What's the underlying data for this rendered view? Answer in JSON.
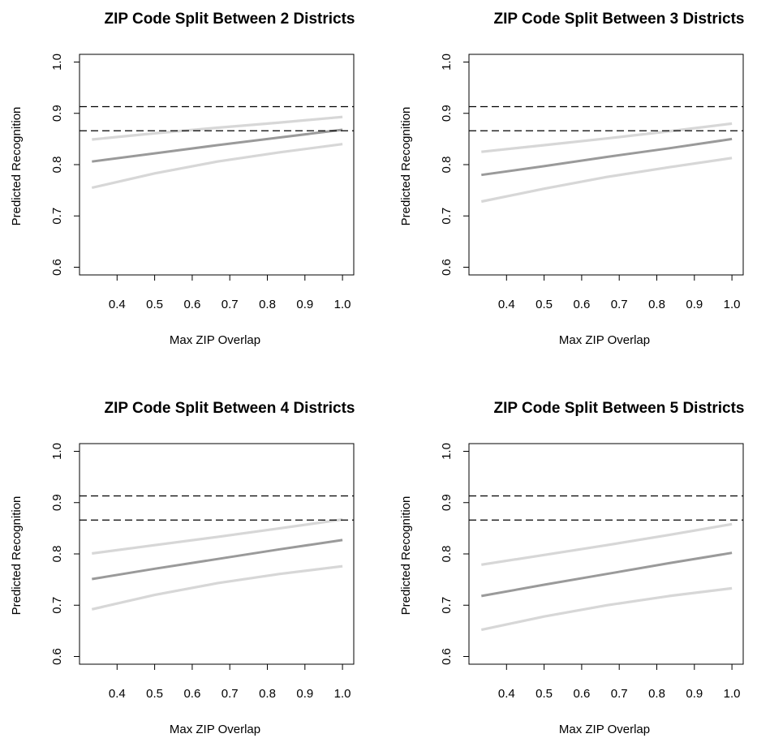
{
  "chart_data": [
    {
      "type": "line",
      "title": "ZIP Code Split Between 2 Districts",
      "xlabel": "Max ZIP Overlap",
      "ylabel": "Predicted Recognition",
      "xlim": [
        0.3,
        1.03
      ],
      "ylim": [
        0.585,
        1.015
      ],
      "xticks": [
        0.4,
        0.5,
        0.6,
        0.7,
        0.8,
        0.9,
        1.0
      ],
      "xtick_labels": [
        "0.4",
        "0.5",
        "0.6",
        "0.7",
        "0.8",
        "0.9",
        "1.0"
      ],
      "yticks": [
        0.6,
        0.7,
        0.8,
        0.9,
        1.0
      ],
      "ytick_labels": [
        "0.6",
        "0.7",
        "0.8",
        "0.9",
        "1.0"
      ],
      "reference_lines": [
        0.913,
        0.866
      ],
      "x": [
        0.333,
        0.5,
        0.667,
        0.833,
        1.0
      ],
      "series": [
        {
          "role": "upper",
          "color": "#d7d7d7",
          "values": [
            0.849,
            0.861,
            0.872,
            0.882,
            0.893
          ]
        },
        {
          "role": "estimate",
          "color": "#9a9a9a",
          "values": [
            0.806,
            0.822,
            0.838,
            0.853,
            0.868
          ]
        },
        {
          "role": "lower",
          "color": "#d7d7d7",
          "values": [
            0.755,
            0.783,
            0.806,
            0.824,
            0.84
          ]
        }
      ]
    },
    {
      "type": "line",
      "title": "ZIP Code Split Between 3 Districts",
      "xlabel": "Max ZIP Overlap",
      "ylabel": "Predicted Recognition",
      "xlim": [
        0.3,
        1.03
      ],
      "ylim": [
        0.585,
        1.015
      ],
      "xticks": [
        0.4,
        0.5,
        0.6,
        0.7,
        0.8,
        0.9,
        1.0
      ],
      "xtick_labels": [
        "0.4",
        "0.5",
        "0.6",
        "0.7",
        "0.8",
        "0.9",
        "1.0"
      ],
      "yticks": [
        0.6,
        0.7,
        0.8,
        0.9,
        1.0
      ],
      "ytick_labels": [
        "0.6",
        "0.7",
        "0.8",
        "0.9",
        "1.0"
      ],
      "reference_lines": [
        0.913,
        0.866
      ],
      "x": [
        0.333,
        0.5,
        0.667,
        0.833,
        1.0
      ],
      "series": [
        {
          "role": "upper",
          "color": "#d7d7d7",
          "values": [
            0.825,
            0.838,
            0.851,
            0.865,
            0.88
          ]
        },
        {
          "role": "estimate",
          "color": "#9a9a9a",
          "values": [
            0.78,
            0.797,
            0.815,
            0.832,
            0.85
          ]
        },
        {
          "role": "lower",
          "color": "#d7d7d7",
          "values": [
            0.728,
            0.753,
            0.776,
            0.795,
            0.813
          ]
        }
      ]
    },
    {
      "type": "line",
      "title": "ZIP Code Split Between 4 Districts",
      "xlabel": "Max ZIP Overlap",
      "ylabel": "Predicted Recognition",
      "xlim": [
        0.3,
        1.03
      ],
      "ylim": [
        0.585,
        1.015
      ],
      "xticks": [
        0.4,
        0.5,
        0.6,
        0.7,
        0.8,
        0.9,
        1.0
      ],
      "xtick_labels": [
        "0.4",
        "0.5",
        "0.6",
        "0.7",
        "0.8",
        "0.9",
        "1.0"
      ],
      "yticks": [
        0.6,
        0.7,
        0.8,
        0.9,
        1.0
      ],
      "ytick_labels": [
        "0.6",
        "0.7",
        "0.8",
        "0.9",
        "1.0"
      ],
      "reference_lines": [
        0.913,
        0.866
      ],
      "x": [
        0.333,
        0.5,
        0.667,
        0.833,
        1.0
      ],
      "series": [
        {
          "role": "upper",
          "color": "#d7d7d7",
          "values": [
            0.801,
            0.817,
            0.833,
            0.85,
            0.867
          ]
        },
        {
          "role": "estimate",
          "color": "#9a9a9a",
          "values": [
            0.751,
            0.771,
            0.79,
            0.809,
            0.827
          ]
        },
        {
          "role": "lower",
          "color": "#d7d7d7",
          "values": [
            0.692,
            0.72,
            0.743,
            0.761,
            0.776
          ]
        }
      ]
    },
    {
      "type": "line",
      "title": "ZIP Code Split Between 5 Districts",
      "xlabel": "Max ZIP Overlap",
      "ylabel": "Predicted Recognition",
      "xlim": [
        0.3,
        1.03
      ],
      "ylim": [
        0.585,
        1.015
      ],
      "xticks": [
        0.4,
        0.5,
        0.6,
        0.7,
        0.8,
        0.9,
        1.0
      ],
      "xtick_labels": [
        "0.4",
        "0.5",
        "0.6",
        "0.7",
        "0.8",
        "0.9",
        "1.0"
      ],
      "yticks": [
        0.6,
        0.7,
        0.8,
        0.9,
        1.0
      ],
      "ytick_labels": [
        "0.6",
        "0.7",
        "0.8",
        "0.9",
        "1.0"
      ],
      "reference_lines": [
        0.913,
        0.866
      ],
      "x": [
        0.333,
        0.5,
        0.667,
        0.833,
        1.0
      ],
      "series": [
        {
          "role": "upper",
          "color": "#d7d7d7",
          "values": [
            0.779,
            0.798,
            0.817,
            0.837,
            0.858
          ]
        },
        {
          "role": "estimate",
          "color": "#9a9a9a",
          "values": [
            0.718,
            0.74,
            0.761,
            0.782,
            0.802
          ]
        },
        {
          "role": "lower",
          "color": "#d7d7d7",
          "values": [
            0.652,
            0.678,
            0.7,
            0.718,
            0.733
          ]
        }
      ]
    }
  ]
}
